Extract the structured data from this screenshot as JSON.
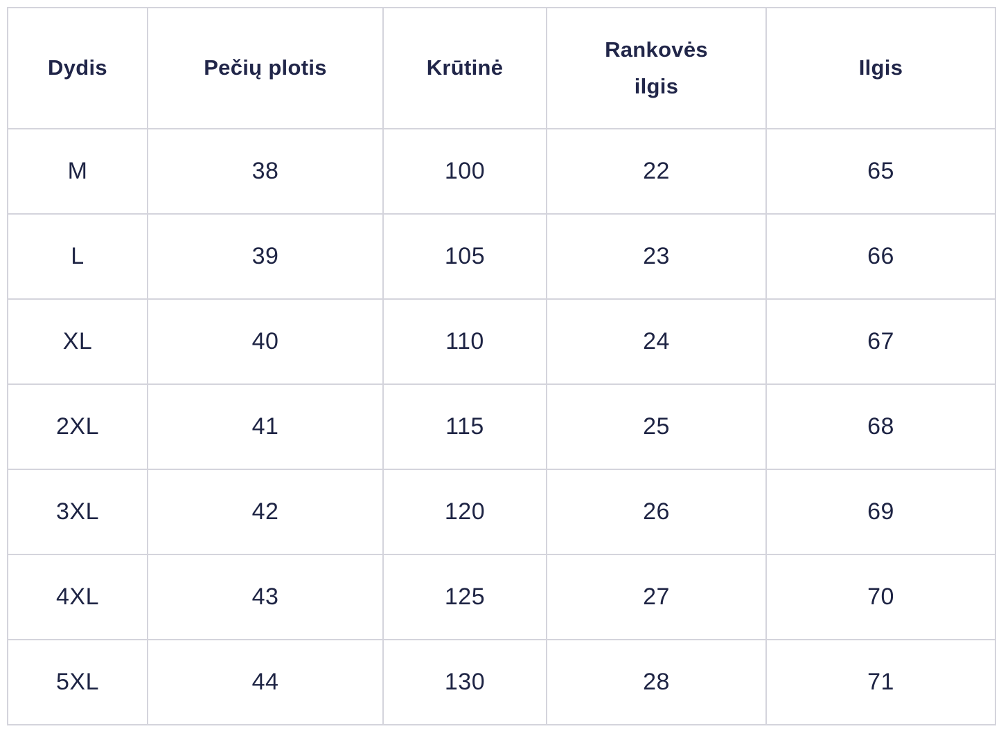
{
  "chart_data": {
    "type": "table",
    "title": "",
    "columns": [
      "Dydis",
      "Pečių plotis",
      "Krūtinė",
      "Rankovės ilgis",
      "Ilgis"
    ],
    "rows": [
      [
        "M",
        38,
        100,
        22,
        65
      ],
      [
        "L",
        39,
        105,
        23,
        66
      ],
      [
        "XL",
        40,
        110,
        24,
        67
      ],
      [
        "2XL",
        41,
        115,
        25,
        68
      ],
      [
        "3XL",
        42,
        120,
        26,
        69
      ],
      [
        "4XL",
        43,
        125,
        27,
        70
      ],
      [
        "5XL",
        44,
        130,
        28,
        71
      ]
    ]
  },
  "colors": {
    "background": "#ffffff",
    "border": "#d4d4dc",
    "header_text": "#212649",
    "cell_text": "#1e2444"
  }
}
